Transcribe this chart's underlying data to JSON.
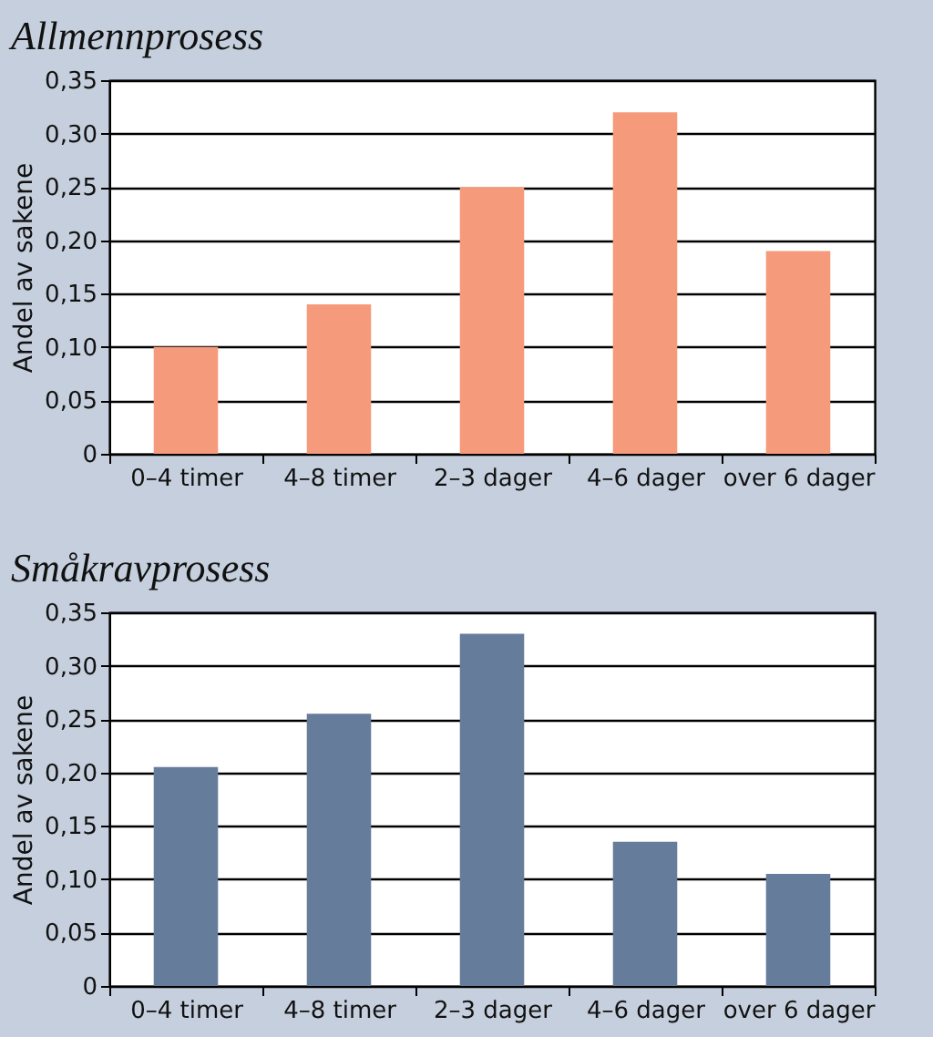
{
  "chart_data": [
    {
      "type": "bar",
      "title": "Allmennprosess",
      "ylabel": "Andel av sakene",
      "categories": [
        "0–4 timer",
        "4–8 timer",
        "2–3 dager",
        "4–6 dager",
        "over 6 dager"
      ],
      "series": [
        {
          "color": "#f59b7b",
          "values": [
            0.1,
            0.14,
            0.25,
            0.32,
            0.19
          ]
        }
      ],
      "ylim": [
        0,
        0.35
      ],
      "yticks": [
        0,
        {
          "value": 0.05,
          "label": "0,05"
        },
        {
          "value": 0.1,
          "label": "0,10"
        },
        {
          "value": 0.15,
          "label": "0,15"
        },
        {
          "value": 0.2,
          "label": "0,20"
        },
        {
          "value": 0.25,
          "label": "0,25"
        },
        {
          "value": 0.3,
          "label": "0,30"
        },
        {
          "value": 0.35,
          "label": "0,35"
        }
      ],
      "grid": "y"
    },
    {
      "type": "bar",
      "title": "Småkravprosess",
      "ylabel": "Andel av sakene",
      "categories": [
        "0–4 timer",
        "4–8 timer",
        "2–3 dager",
        "4–6 dager",
        "over 6 dager"
      ],
      "series": [
        {
          "color": "#667c9b",
          "values": [
            0.205,
            0.255,
            0.33,
            0.135,
            0.105
          ]
        }
      ],
      "ylim": [
        0,
        0.35
      ],
      "yticks": [
        0,
        {
          "value": 0.05,
          "label": "0,05"
        },
        {
          "value": 0.1,
          "label": "0,10"
        },
        {
          "value": 0.15,
          "label": "0,15"
        },
        {
          "value": 0.2,
          "label": "0,20"
        },
        {
          "value": 0.25,
          "label": "0,25"
        },
        {
          "value": 0.3,
          "label": "0,30"
        },
        {
          "value": 0.35,
          "label": "0,35"
        }
      ],
      "grid": "y"
    }
  ]
}
